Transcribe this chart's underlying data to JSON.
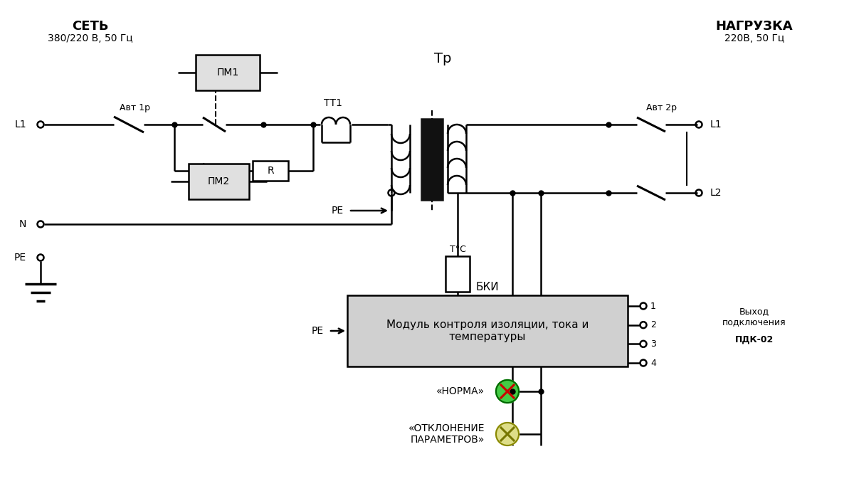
{
  "bg_color": "#ffffff",
  "line_color": "#000000",
  "box_fill": "#e0e0e0",
  "box_edge": "#000000",
  "green_color": "#44cc44",
  "yellow_color": "#dddd88",
  "bki_fill": "#d0d0d0",
  "title_left": "СЕТЬ",
  "subtitle_left": "380/220 В, 50 Гц",
  "title_right": "НАГРУЗКА",
  "subtitle_right": "220В, 50 Гц",
  "label_Tr": "Тр",
  "label_BKI": "БКИ",
  "label_module": "Модуль контроля изоляции, тока и\nтемпературы",
  "label_norma": "«НОРМА»",
  "label_otkl": "«ОТКЛОНЕНИЕ\nПАРАМЕТРОВ»",
  "label_PE": "PE",
  "label_N": "N",
  "label_L1": "L1",
  "label_L2": "L2",
  "label_Avt1p": "Авт 1р",
  "label_Avt2p": "Авт 2р",
  "label_PM1": "ПМ1",
  "label_PM2": "ПМ2",
  "label_TT1": "ТТ1",
  "label_R": "R",
  "label_TC": "T°С",
  "label_vyhod": "Выход\nподключения",
  "label_PDK": "ПДК-02",
  "nums": [
    "1",
    "2",
    "3",
    "4"
  ]
}
